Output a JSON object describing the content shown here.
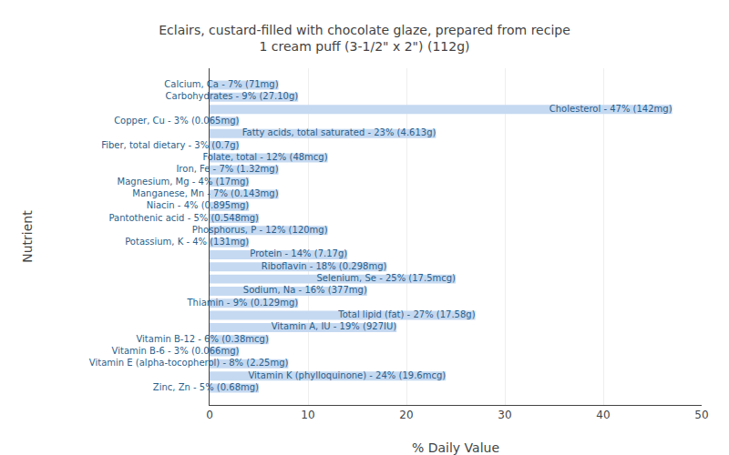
{
  "chart_data": {
    "type": "bar",
    "orientation": "horizontal",
    "title": "Eclairs, custard-filled with chocolate glaze, prepared from recipe\n1 cream puff (3-1/2\" x 2\") (112g)",
    "xlabel": "% Daily Value",
    "ylabel": "Nutrient",
    "categories": [
      "Calcium, Ca - 7% (71mg)",
      "Carbohydrates - 9% (27.10g)",
      "Cholesterol - 47% (142mg)",
      "Copper, Cu - 3% (0.065mg)",
      "Fatty acids, total saturated - 23% (4.613g)",
      "Fiber, total dietary - 3% (0.7g)",
      "Folate, total - 12% (48mcg)",
      "Iron, Fe - 7% (1.32mg)",
      "Magnesium, Mg - 4% (17mg)",
      "Manganese, Mn - 7% (0.143mg)",
      "Niacin - 4% (0.895mg)",
      "Pantothenic acid - 5% (0.548mg)",
      "Phosphorus, P - 12% (120mg)",
      "Potassium, K - 4% (131mg)",
      "Protein - 14% (7.17g)",
      "Riboflavin - 18% (0.298mg)",
      "Selenium, Se - 25% (17.5mcg)",
      "Sodium, Na - 16% (377mg)",
      "Thiamin - 9% (0.129mg)",
      "Total lipid (fat) - 27% (17.58g)",
      "Vitamin A, IU - 19% (927IU)",
      "Vitamin B-12 - 6% (0.38mcg)",
      "Vitamin B-6 - 3% (0.066mg)",
      "Vitamin E (alpha-tocopherol) - 8% (2.25mg)",
      "Vitamin K (phylloquinone) - 24% (19.6mcg)",
      "Zinc, Zn - 5% (0.68mg)"
    ],
    "values": [
      7,
      9,
      47,
      3,
      23,
      3,
      12,
      7,
      4,
      7,
      4,
      5,
      12,
      4,
      14,
      18,
      25,
      16,
      9,
      27,
      19,
      6,
      3,
      8,
      24,
      5
    ],
    "color": "#c5d9f1",
    "xlim": [
      0,
      50
    ],
    "xticks": [
      0,
      10,
      20,
      30,
      40,
      50
    ],
    "grid": true,
    "tick_labels": "x"
  }
}
